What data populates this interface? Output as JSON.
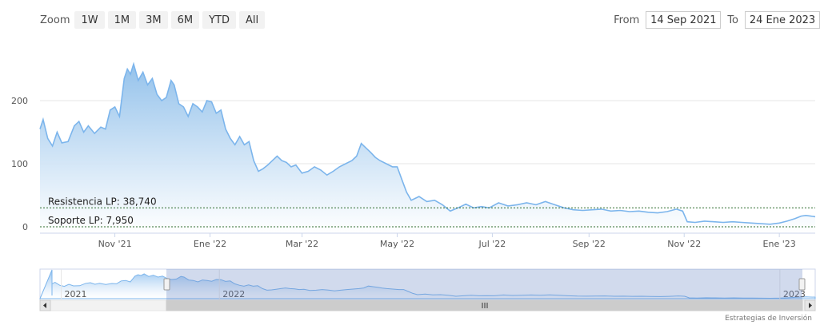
{
  "zoom": {
    "label": "Zoom",
    "buttons": [
      "1W",
      "1M",
      "3M",
      "6M",
      "YTD",
      "All"
    ]
  },
  "range": {
    "from_label": "From",
    "from_value": "14 Sep 2021",
    "to_label": "To",
    "to_value": "24 Ene 2023"
  },
  "credit": "Estrategias de Inversión",
  "colors": {
    "line": "#7cb5ec",
    "fill_top": "#8fbfea",
    "fill_bottom": "#ffffff",
    "level": "#2e6b2e",
    "navigator_mask": "rgba(102,133,194,0.3)"
  },
  "chart_data": {
    "type": "area",
    "title": "",
    "xlabel": "",
    "ylabel": "",
    "ylim": [
      0,
      260
    ],
    "yticks": [
      0,
      100,
      200
    ],
    "xlim": [
      "2021-09-14",
      "2023-01-24"
    ],
    "xticks": [
      {
        "date": "2021-11-01",
        "label": "Nov '21"
      },
      {
        "date": "2022-01-01",
        "label": "Ene '22"
      },
      {
        "date": "2022-03-01",
        "label": "Mar '22"
      },
      {
        "date": "2022-05-01",
        "label": "May '22"
      },
      {
        "date": "2022-07-01",
        "label": "Jul '22"
      },
      {
        "date": "2022-09-01",
        "label": "Sep '22"
      },
      {
        "date": "2022-11-01",
        "label": "Nov '22"
      },
      {
        "date": "2023-01-01",
        "label": "Ene '23"
      }
    ],
    "series": [
      {
        "points": [
          [
            "2021-09-14",
            155
          ],
          [
            "2021-09-16",
            170
          ],
          [
            "2021-09-19",
            140
          ],
          [
            "2021-09-22",
            128
          ],
          [
            "2021-09-25",
            150
          ],
          [
            "2021-09-28",
            133
          ],
          [
            "2021-10-02",
            135
          ],
          [
            "2021-10-06",
            160
          ],
          [
            "2021-10-09",
            167
          ],
          [
            "2021-10-12",
            150
          ],
          [
            "2021-10-15",
            160
          ],
          [
            "2021-10-19",
            148
          ],
          [
            "2021-10-23",
            158
          ],
          [
            "2021-10-26",
            155
          ],
          [
            "2021-10-29",
            185
          ],
          [
            "2021-11-01",
            190
          ],
          [
            "2021-11-04",
            175
          ],
          [
            "2021-11-07",
            235
          ],
          [
            "2021-11-09",
            250
          ],
          [
            "2021-11-11",
            242
          ],
          [
            "2021-11-13",
            258
          ],
          [
            "2021-11-16",
            232
          ],
          [
            "2021-11-19",
            245
          ],
          [
            "2021-11-22",
            225
          ],
          [
            "2021-11-25",
            235
          ],
          [
            "2021-11-28",
            210
          ],
          [
            "2021-12-01",
            200
          ],
          [
            "2021-12-04",
            205
          ],
          [
            "2021-12-07",
            232
          ],
          [
            "2021-12-09",
            225
          ],
          [
            "2021-12-12",
            195
          ],
          [
            "2021-12-15",
            190
          ],
          [
            "2021-12-18",
            175
          ],
          [
            "2021-12-21",
            195
          ],
          [
            "2021-12-24",
            190
          ],
          [
            "2021-12-27",
            182
          ],
          [
            "2021-12-30",
            200
          ],
          [
            "2022-01-02",
            198
          ],
          [
            "2022-01-05",
            180
          ],
          [
            "2022-01-08",
            185
          ],
          [
            "2022-01-11",
            155
          ],
          [
            "2022-01-14",
            140
          ],
          [
            "2022-01-17",
            130
          ],
          [
            "2022-01-20",
            143
          ],
          [
            "2022-01-23",
            130
          ],
          [
            "2022-01-26",
            135
          ],
          [
            "2022-01-29",
            105
          ],
          [
            "2022-02-01",
            88
          ],
          [
            "2022-02-04",
            92
          ],
          [
            "2022-02-07",
            98
          ],
          [
            "2022-02-10",
            105
          ],
          [
            "2022-02-13",
            112
          ],
          [
            "2022-02-16",
            105
          ],
          [
            "2022-02-19",
            102
          ],
          [
            "2022-02-22",
            95
          ],
          [
            "2022-02-25",
            98
          ],
          [
            "2022-03-01",
            85
          ],
          [
            "2022-03-05",
            88
          ],
          [
            "2022-03-09",
            95
          ],
          [
            "2022-03-13",
            90
          ],
          [
            "2022-03-17",
            82
          ],
          [
            "2022-03-21",
            88
          ],
          [
            "2022-03-25",
            95
          ],
          [
            "2022-03-29",
            100
          ],
          [
            "2022-04-02",
            105
          ],
          [
            "2022-04-05",
            112
          ],
          [
            "2022-04-08",
            132
          ],
          [
            "2022-04-11",
            125
          ],
          [
            "2022-04-14",
            118
          ],
          [
            "2022-04-17",
            110
          ],
          [
            "2022-04-20",
            105
          ],
          [
            "2022-04-24",
            100
          ],
          [
            "2022-04-28",
            95
          ],
          [
            "2022-05-01",
            95
          ],
          [
            "2022-05-04",
            75
          ],
          [
            "2022-05-07",
            55
          ],
          [
            "2022-05-10",
            42
          ],
          [
            "2022-05-15",
            48
          ],
          [
            "2022-05-20",
            40
          ],
          [
            "2022-05-25",
            42
          ],
          [
            "2022-05-30",
            35
          ],
          [
            "2022-06-04",
            25
          ],
          [
            "2022-06-09",
            30
          ],
          [
            "2022-06-14",
            36
          ],
          [
            "2022-06-19",
            30
          ],
          [
            "2022-06-24",
            32
          ],
          [
            "2022-06-29",
            30
          ],
          [
            "2022-07-05",
            38
          ],
          [
            "2022-07-11",
            33
          ],
          [
            "2022-07-17",
            35
          ],
          [
            "2022-07-23",
            38
          ],
          [
            "2022-07-29",
            35
          ],
          [
            "2022-08-04",
            40
          ],
          [
            "2022-08-10",
            35
          ],
          [
            "2022-08-16",
            30
          ],
          [
            "2022-08-22",
            27
          ],
          [
            "2022-08-28",
            26
          ],
          [
            "2022-09-03",
            27
          ],
          [
            "2022-09-09",
            28
          ],
          [
            "2022-09-15",
            25
          ],
          [
            "2022-09-21",
            26
          ],
          [
            "2022-09-27",
            24
          ],
          [
            "2022-10-03",
            25
          ],
          [
            "2022-10-09",
            23
          ],
          [
            "2022-10-15",
            22
          ],
          [
            "2022-10-21",
            24
          ],
          [
            "2022-10-27",
            28
          ],
          [
            "2022-10-31",
            25
          ],
          [
            "2022-11-03",
            8
          ],
          [
            "2022-11-08",
            7
          ],
          [
            "2022-11-14",
            9
          ],
          [
            "2022-11-20",
            8
          ],
          [
            "2022-11-26",
            7
          ],
          [
            "2022-12-02",
            8
          ],
          [
            "2022-12-08",
            7
          ],
          [
            "2022-12-14",
            6
          ],
          [
            "2022-12-20",
            5
          ],
          [
            "2022-12-26",
            4
          ],
          [
            "2023-01-01",
            6
          ],
          [
            "2023-01-06",
            9
          ],
          [
            "2023-01-11",
            13
          ],
          [
            "2023-01-15",
            17
          ],
          [
            "2023-01-18",
            18
          ],
          [
            "2023-01-21",
            17
          ],
          [
            "2023-01-24",
            16
          ]
        ]
      }
    ],
    "levels": [
      {
        "label": "Resistencia LP: 38,740",
        "value": 30
      },
      {
        "label": "Soporte LP: 7,950",
        "value": 0
      }
    ],
    "navigator": {
      "labels": [
        {
          "date": "2021-09-20",
          "label": "2021"
        },
        {
          "date": "2022-01-01",
          "label": "2022"
        },
        {
          "date": "2023-01-01",
          "label": "2023"
        }
      ]
    }
  }
}
